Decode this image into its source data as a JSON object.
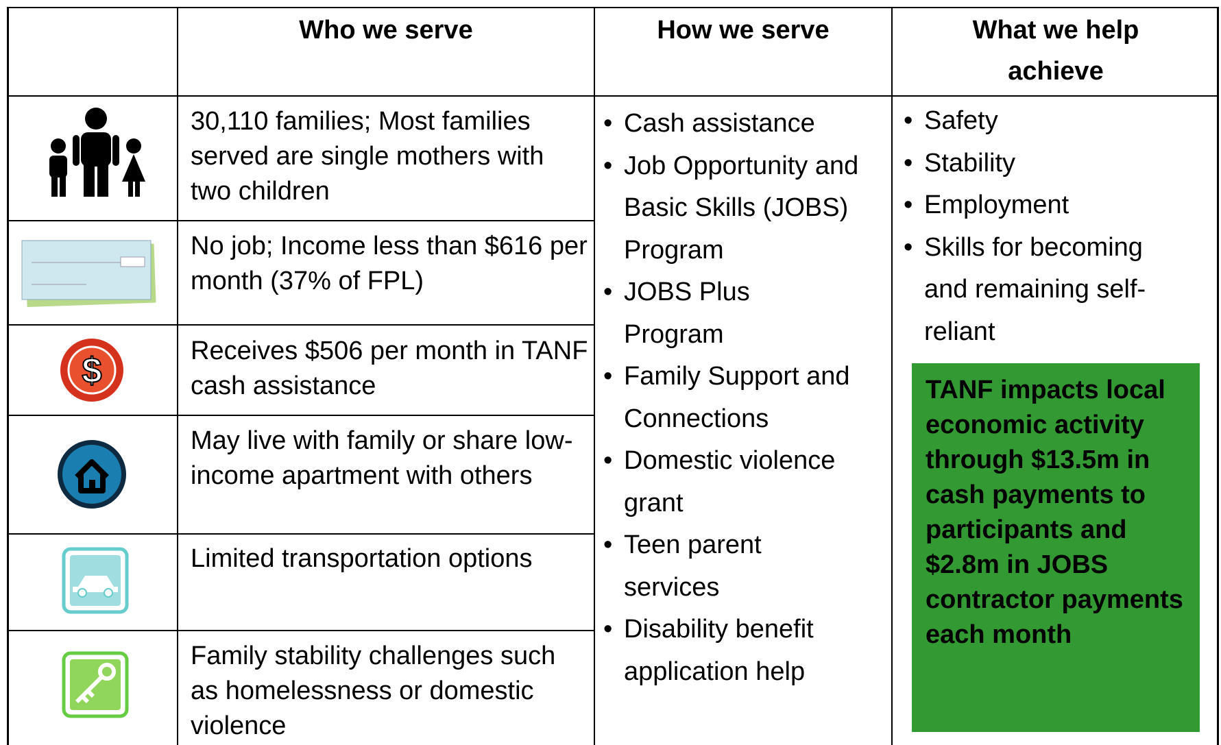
{
  "table": {
    "header": [
      "Who we serve",
      "How we serve",
      "What we help achieve"
    ],
    "rows": [
      "30,110 families; Most families served are single mothers with two children",
      "No job; Income less than $616 per month (37% of FPL)",
      "Receives $506 per month in TANF cash assistance",
      "May live with family or share low-income apartment with others",
      "Limited transportation options",
      "Family stability challenges such as homelessness or domestic violence"
    ],
    "how_we_serve": [
      "Cash assistance",
      "Job Opportunity and Basic Skills (JOBS) Program",
      "JOBS Plus Program",
      "Family Support and Connections",
      "Domestic violence grant",
      "Teen parent services",
      "Disability benefit application help"
    ],
    "what_we_help_achieve": [
      "Safety",
      "Stability",
      "Employment",
      "Skills for becoming and remaining self-reliant"
    ],
    "callout": "TANF impacts local economic activity through $13.5m in cash payments to participants and $2.8m in JOBS contractor payments each month"
  }
}
